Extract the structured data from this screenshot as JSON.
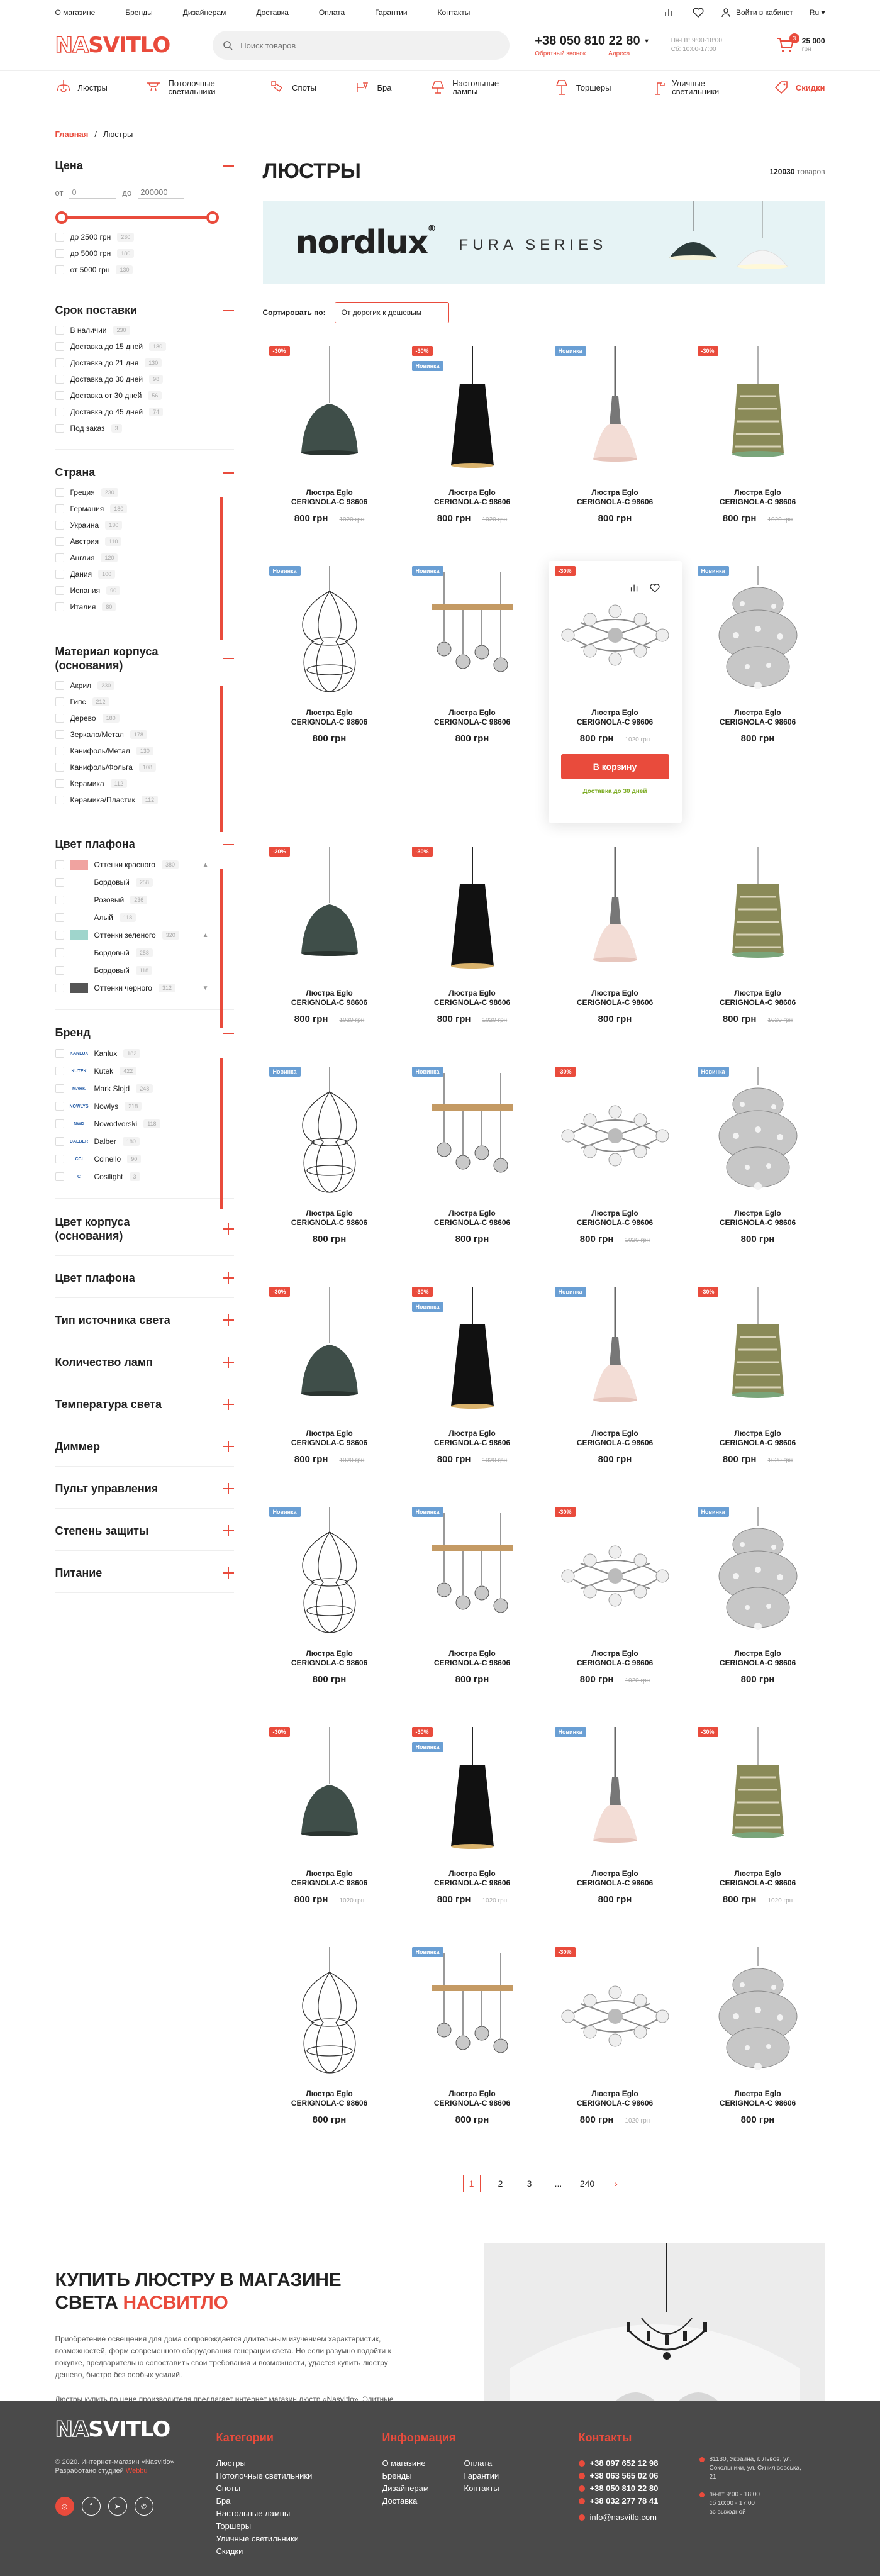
{
  "topnav": [
    "О магазине",
    "Бренды",
    "Дизайнерам",
    "Доставка",
    "Оплата",
    "Гарантии",
    "Контакты"
  ],
  "top": {
    "cabinet": "Войти в кабинет",
    "lang": "Ru"
  },
  "header": {
    "logo_a": "NA",
    "logo_b": "SVITLO",
    "search_placeholder": "Поиск товаров",
    "phone": "+38 050 810 22 80",
    "callback": "Обратный звонок",
    "stores": "Адреса",
    "hours1": "Пн-Пт: 9:00-18:00",
    "hours2": "Сб: 10:00-17:00",
    "cart_count": "3",
    "cart_sum": "25 000",
    "cart_unit": "грн"
  },
  "categories": [
    {
      "label": "Люстры",
      "icon": "chandelier-icon"
    },
    {
      "label": "Потолочные светильники",
      "icon": "ceiling-lamp-icon"
    },
    {
      "label": "Споты",
      "icon": "spot-icon"
    },
    {
      "label": "Бра",
      "icon": "sconce-icon"
    },
    {
      "label": "Настольные лампы",
      "icon": "table-lamp-icon"
    },
    {
      "label": "Торшеры",
      "icon": "floor-lamp-icon"
    },
    {
      "label": "Уличные светильники",
      "icon": "street-lamp-icon"
    },
    {
      "label": "Скидки",
      "icon": "discount-icon"
    }
  ],
  "breadcrumbs": {
    "home": "Главная",
    "sep": "/",
    "current": "Люстры"
  },
  "filters": {
    "price": {
      "title": "Цена",
      "from_label": "от",
      "from_value": "0",
      "to_label": "до",
      "to_placeholder": "200000",
      "options": [
        {
          "label": "до 2500 грн",
          "count": "230"
        },
        {
          "label": "до 5000 грн",
          "count": "180"
        },
        {
          "label": "от 5000 грн",
          "count": "130"
        }
      ]
    },
    "delivery": {
      "title": "Срок поставки",
      "options": [
        {
          "label": "В наличии",
          "count": "230"
        },
        {
          "label": "Доставка до 15 дней",
          "count": "180"
        },
        {
          "label": "Доставка до 21 дня",
          "count": "130"
        },
        {
          "label": "Доставка до 30 дней",
          "count": "98"
        },
        {
          "label": "Доставка от 30 дней",
          "count": "56"
        },
        {
          "label": "Доставка до 45 дней",
          "count": "74"
        },
        {
          "label": "Под заказ",
          "count": "3"
        }
      ]
    },
    "country": {
      "title": "Страна",
      "options": [
        {
          "label": "Греция",
          "count": "230"
        },
        {
          "label": "Германия",
          "count": "180"
        },
        {
          "label": "Украина",
          "count": "130"
        },
        {
          "label": "Австрия",
          "count": "110"
        },
        {
          "label": "Англия",
          "count": "120"
        },
        {
          "label": "Дания",
          "count": "100"
        },
        {
          "label": "Испания",
          "count": "90"
        },
        {
          "label": "Италия",
          "count": "80"
        }
      ]
    },
    "material": {
      "title": "Материал корпуса (основания)",
      "options": [
        {
          "label": "Акрил",
          "count": "230"
        },
        {
          "label": "Гипс",
          "count": "212"
        },
        {
          "label": "Дерево",
          "count": "180"
        },
        {
          "label": "Зеркало/Метал",
          "count": "178"
        },
        {
          "label": "Канифоль/Метал",
          "count": "130"
        },
        {
          "label": "Канифоль/Фольга",
          "count": "108"
        },
        {
          "label": "Керамика",
          "count": "112"
        },
        {
          "label": "Керамика/Пластик",
          "count": "112"
        }
      ]
    },
    "shade_color": {
      "title": "Цвет плафона",
      "options": [
        {
          "label": "Оттенки красного",
          "count": "380",
          "swatch": "#f0a3a0",
          "chev": "▲"
        },
        {
          "label": "Бордовый",
          "count": "258",
          "swatch": "",
          "chev": ""
        },
        {
          "label": "Розовый",
          "count": "236",
          "swatch": "",
          "chev": ""
        },
        {
          "label": "Алый",
          "count": "118",
          "swatch": "",
          "chev": ""
        },
        {
          "label": "Оттенки зеленого",
          "count": "320",
          "swatch": "#9fd5cc",
          "chev": "▲"
        },
        {
          "label": "Бордовый",
          "count": "258",
          "swatch": "",
          "chev": ""
        },
        {
          "label": "Бордовый",
          "count": "118",
          "swatch": "",
          "chev": ""
        },
        {
          "label": "Оттенки черного",
          "count": "312",
          "swatch": "#555555",
          "chev": "▼"
        }
      ]
    },
    "brand": {
      "title": "Бренд",
      "options": [
        {
          "label": "Kanlux",
          "count": "182",
          "logo": "KANLUX"
        },
        {
          "label": "Kutek",
          "count": "422",
          "logo": "KUTEK"
        },
        {
          "label": "Mark Slojd",
          "count": "248",
          "logo": "MARK"
        },
        {
          "label": "Nowlys",
          "count": "218",
          "logo": "NOWLYS"
        },
        {
          "label": "Nowodvorski",
          "count": "118",
          "logo": "NWD"
        },
        {
          "label": "Dalber",
          "count": "180",
          "logo": "DALBER"
        },
        {
          "label": "Ccinello",
          "count": "90",
          "logo": "CCI"
        },
        {
          "label": "Cosilight",
          "count": "3",
          "logo": "C"
        }
      ]
    },
    "collapsed": [
      "Цвет корпуса (основания)",
      "Цвет плафона",
      "Тип источника света",
      "Количество ламп",
      "Температура света",
      "Диммер",
      "Пульт управления",
      "Степень защиты",
      "Питание"
    ]
  },
  "content": {
    "title": "ЛЮСТРЫ",
    "count": "120030",
    "count_label": "товаров",
    "banner_brand": "nordlux",
    "banner_reg": "®",
    "banner_series": "FURA SERIES",
    "sort_label": "Сортировать по:",
    "sort_value": "От дорогих к дешевым"
  },
  "products": [
    {
      "type": "dome",
      "b1": "-30%",
      "b2": "",
      "name1": "Люстра Eglo",
      "name2": "CERIGNOLA-C 98606",
      "price": "800 грн",
      "old": "1020 грн"
    },
    {
      "type": "cone",
      "b1": "-30%",
      "b2": "Новинка",
      "name1": "Люстра Eglo",
      "name2": "CERIGNOLA-C 98606",
      "price": "800 грн",
      "old": "1020 грн"
    },
    {
      "type": "bell",
      "b1": "",
      "b2": "Новинка",
      "name1": "Люстра Eglo",
      "name2": "CERIGNOLA-C 98606",
      "price": "800 грн",
      "old": ""
    },
    {
      "type": "drum",
      "b1": "-30%",
      "b2": "",
      "name1": "Люстра Eglo",
      "name2": "CERIGNOLA-C 98606",
      "price": "800 грн",
      "old": "1020 грн"
    },
    {
      "type": "cage",
      "b1": "",
      "b2": "Новинка",
      "name1": "Люстра Eglo",
      "name2": "CERIGNOLA-C 98606",
      "price": "800 грн",
      "old": ""
    },
    {
      "type": "bar",
      "b1": "",
      "b2": "Новинка",
      "name1": "Люстра Eglo",
      "name2": "CERIGNOLA-C 98606",
      "price": "800 грн",
      "old": ""
    },
    {
      "type": "sputnik",
      "b1": "-30%",
      "b2": "",
      "name1": "Люстра Eglo",
      "name2": "CERIGNOLA-C 98606",
      "price": "800 грн",
      "old": "1020 грн",
      "hover": true
    },
    {
      "type": "crystal",
      "b1": "",
      "b2": "Новинка",
      "name1": "Люстра Eglo",
      "name2": "CERIGNOLA-C 98606",
      "price": "800 грн",
      "old": ""
    },
    {
      "type": "dome",
      "b1": "-30%",
      "b2": "",
      "name1": "Люстра Eglo",
      "name2": "CERIGNOLA-C 98606",
      "price": "800 грн",
      "old": "1020 грн"
    },
    {
      "type": "cone",
      "b1": "-30%",
      "b2": "",
      "name1": "Люстра Eglo",
      "name2": "CERIGNOLA-C 98606",
      "price": "800 грн",
      "old": "1020 грн"
    },
    {
      "type": "bell",
      "b1": "",
      "b2": "",
      "name1": "Люстра Eglo",
      "name2": "CERIGNOLA-C 98606",
      "price": "800 грн",
      "old": ""
    },
    {
      "type": "drum",
      "b1": "",
      "b2": "",
      "name1": "Люстра Eglo",
      "name2": "CERIGNOLA-C 98606",
      "price": "800 грн",
      "old": "1020 грн"
    },
    {
      "type": "cage",
      "b1": "",
      "b2": "Новинка",
      "name1": "Люстра Eglo",
      "name2": "CERIGNOLA-C 98606",
      "price": "800 грн",
      "old": ""
    },
    {
      "type": "bar",
      "b1": "",
      "b2": "Новинка",
      "name1": "Люстра Eglo",
      "name2": "CERIGNOLA-C 98606",
      "price": "800 грн",
      "old": ""
    },
    {
      "type": "sputnik",
      "b1": "-30%",
      "b2": "",
      "name1": "Люстра Eglo",
      "name2": "CERIGNOLA-C 98606",
      "price": "800 грн",
      "old": "1020 грн"
    },
    {
      "type": "crystal",
      "b1": "",
      "b2": "Новинка",
      "name1": "Люстра Eglo",
      "name2": "CERIGNOLA-C 98606",
      "price": "800 грн",
      "old": ""
    },
    {
      "type": "dome",
      "b1": "-30%",
      "b2": "",
      "name1": "Люстра Eglo",
      "name2": "CERIGNOLA-C 98606",
      "price": "800 грн",
      "old": "1020 грн"
    },
    {
      "type": "cone",
      "b1": "-30%",
      "b2": "Новинка",
      "name1": "Люстра Eglo",
      "name2": "CERIGNOLA-C 98606",
      "price": "800 грн",
      "old": "1020 грн"
    },
    {
      "type": "bell",
      "b1": "",
      "b2": "Новинка",
      "name1": "Люстра Eglo",
      "name2": "CERIGNOLA-C 98606",
      "price": "800 грн",
      "old": ""
    },
    {
      "type": "drum",
      "b1": "-30%",
      "b2": "",
      "name1": "Люстра Eglo",
      "name2": "CERIGNOLA-C 98606",
      "price": "800 грн",
      "old": "1020 грн"
    },
    {
      "type": "cage",
      "b1": "",
      "b2": "Новинка",
      "name1": "Люстра Eglo",
      "name2": "CERIGNOLA-C 98606",
      "price": "800 грн",
      "old": ""
    },
    {
      "type": "bar",
      "b1": "",
      "b2": "Новинка",
      "name1": "Люстра Eglo",
      "name2": "CERIGNOLA-C 98606",
      "price": "800 грн",
      "old": ""
    },
    {
      "type": "sputnik",
      "b1": "-30%",
      "b2": "",
      "name1": "Люстра Eglo",
      "name2": "CERIGNOLA-C 98606",
      "price": "800 грн",
      "old": "1020 грн"
    },
    {
      "type": "crystal",
      "b1": "",
      "b2": "Новинка",
      "name1": "Люстра Eglo",
      "name2": "CERIGNOLA-C 98606",
      "price": "800 грн",
      "old": ""
    },
    {
      "type": "dome",
      "b1": "-30%",
      "b2": "",
      "name1": "Люстра Eglo",
      "name2": "CERIGNOLA-C 98606",
      "price": "800 грн",
      "old": "1020 грн"
    },
    {
      "type": "cone",
      "b1": "-30%",
      "b2": "Новинка",
      "name1": "Люстра Eglo",
      "name2": "CERIGNOLA-C 98606",
      "price": "800 грн",
      "old": "1020 грн"
    },
    {
      "type": "bell",
      "b1": "",
      "b2": "Новинка",
      "name1": "Люстра Eglo",
      "name2": "CERIGNOLA-C 98606",
      "price": "800 грн",
      "old": ""
    },
    {
      "type": "drum",
      "b1": "-30%",
      "b2": "",
      "name1": "Люстра Eglo",
      "name2": "CERIGNOLA-C 98606",
      "price": "800 грн",
      "old": "1020 грн"
    },
    {
      "type": "cage",
      "b1": "",
      "b2": "",
      "name1": "Люстра Eglo",
      "name2": "CERIGNOLA-C 98606",
      "price": "800 грн",
      "old": ""
    },
    {
      "type": "bar",
      "b1": "",
      "b2": "Новинка",
      "name1": "Люстра Eglo",
      "name2": "CERIGNOLA-C 98606",
      "price": "800 грн",
      "old": ""
    },
    {
      "type": "sputnik",
      "b1": "-30%",
      "b2": "",
      "name1": "Люстра Eglo",
      "name2": "CERIGNOLA-C 98606",
      "price": "800 грн",
      "old": "1020 грн"
    },
    {
      "type": "crystal",
      "b1": "",
      "b2": "",
      "name1": "Люстра Eglo",
      "name2": "CERIGNOLA-C 98606",
      "price": "800 грн",
      "old": ""
    }
  ],
  "hover_card": {
    "basket": "В корзину",
    "delivery": "Доставка до 30 дней"
  },
  "pagination": {
    "pages": [
      "1",
      "2",
      "3",
      "...",
      "240"
    ],
    "next": "›"
  },
  "seo": {
    "title_a": "КУПИТЬ ЛЮСТРУ В МАГАЗИНЕ СВЕТА ",
    "title_b": "НАСВИТЛО",
    "p1": "Приобретение освещения для дома сопровождается длительным изучением характеристик, возможностей, форм современного оборудования генерации света. Но если разумно подойти к покупке, предварительно сопоставить свои требования и возможности, удастся купить люстру дешево, быстро без особых усилий.",
    "p2": "Люстры купить по цене производителя предлагает интернет магазин люстр «NasvItlo». Элитные дизайнерские лаконичные бюджетные модели, классические и современные «коллекции» – освещательные приборы различных форм, размера и художественного исполнения вы найдете на страницах сервиса."
  },
  "footer": {
    "copyright": "© 2020. Интернет-магазин «NasvItlo»",
    "dev_label": "Разработано студией",
    "dev_name": "Webbu",
    "social": [
      "ig",
      "f",
      "tg",
      "vb"
    ],
    "cat_title": "Категории",
    "cats": [
      "Люстры",
      "Потолочные светильники",
      "Споты",
      "Бра",
      "Настольные лампы",
      "Торшеры",
      "Уличные светильники",
      "Скидки"
    ],
    "info_title": "Информация",
    "info_col1": [
      "О магазине",
      "Бренды",
      "Дизайнерам",
      "Доставка"
    ],
    "info_col2": [
      "Оплата",
      "Гарантии",
      "Контакты"
    ],
    "contacts_title": "Контакты",
    "phones": [
      "+38 097 652 12 98",
      "+38 063 565 02 06",
      "+38 050 810 22 80",
      "+38 032 277 78 41"
    ],
    "email": "info@nasvitlo.com",
    "addr": "81130, Украина, г. Львов, ул. Сокольники, ул. Скнилівовська, 21",
    "hours": "пн-пт 9:00 - 18:00\nсб 10:00 - 17:00\nвс выходной"
  },
  "colors": {
    "accent": "#e94b3c",
    "new_badge": "#6a9fd4",
    "footer_bg": "#4a4a4a",
    "delivery": "#7aaa1f"
  }
}
